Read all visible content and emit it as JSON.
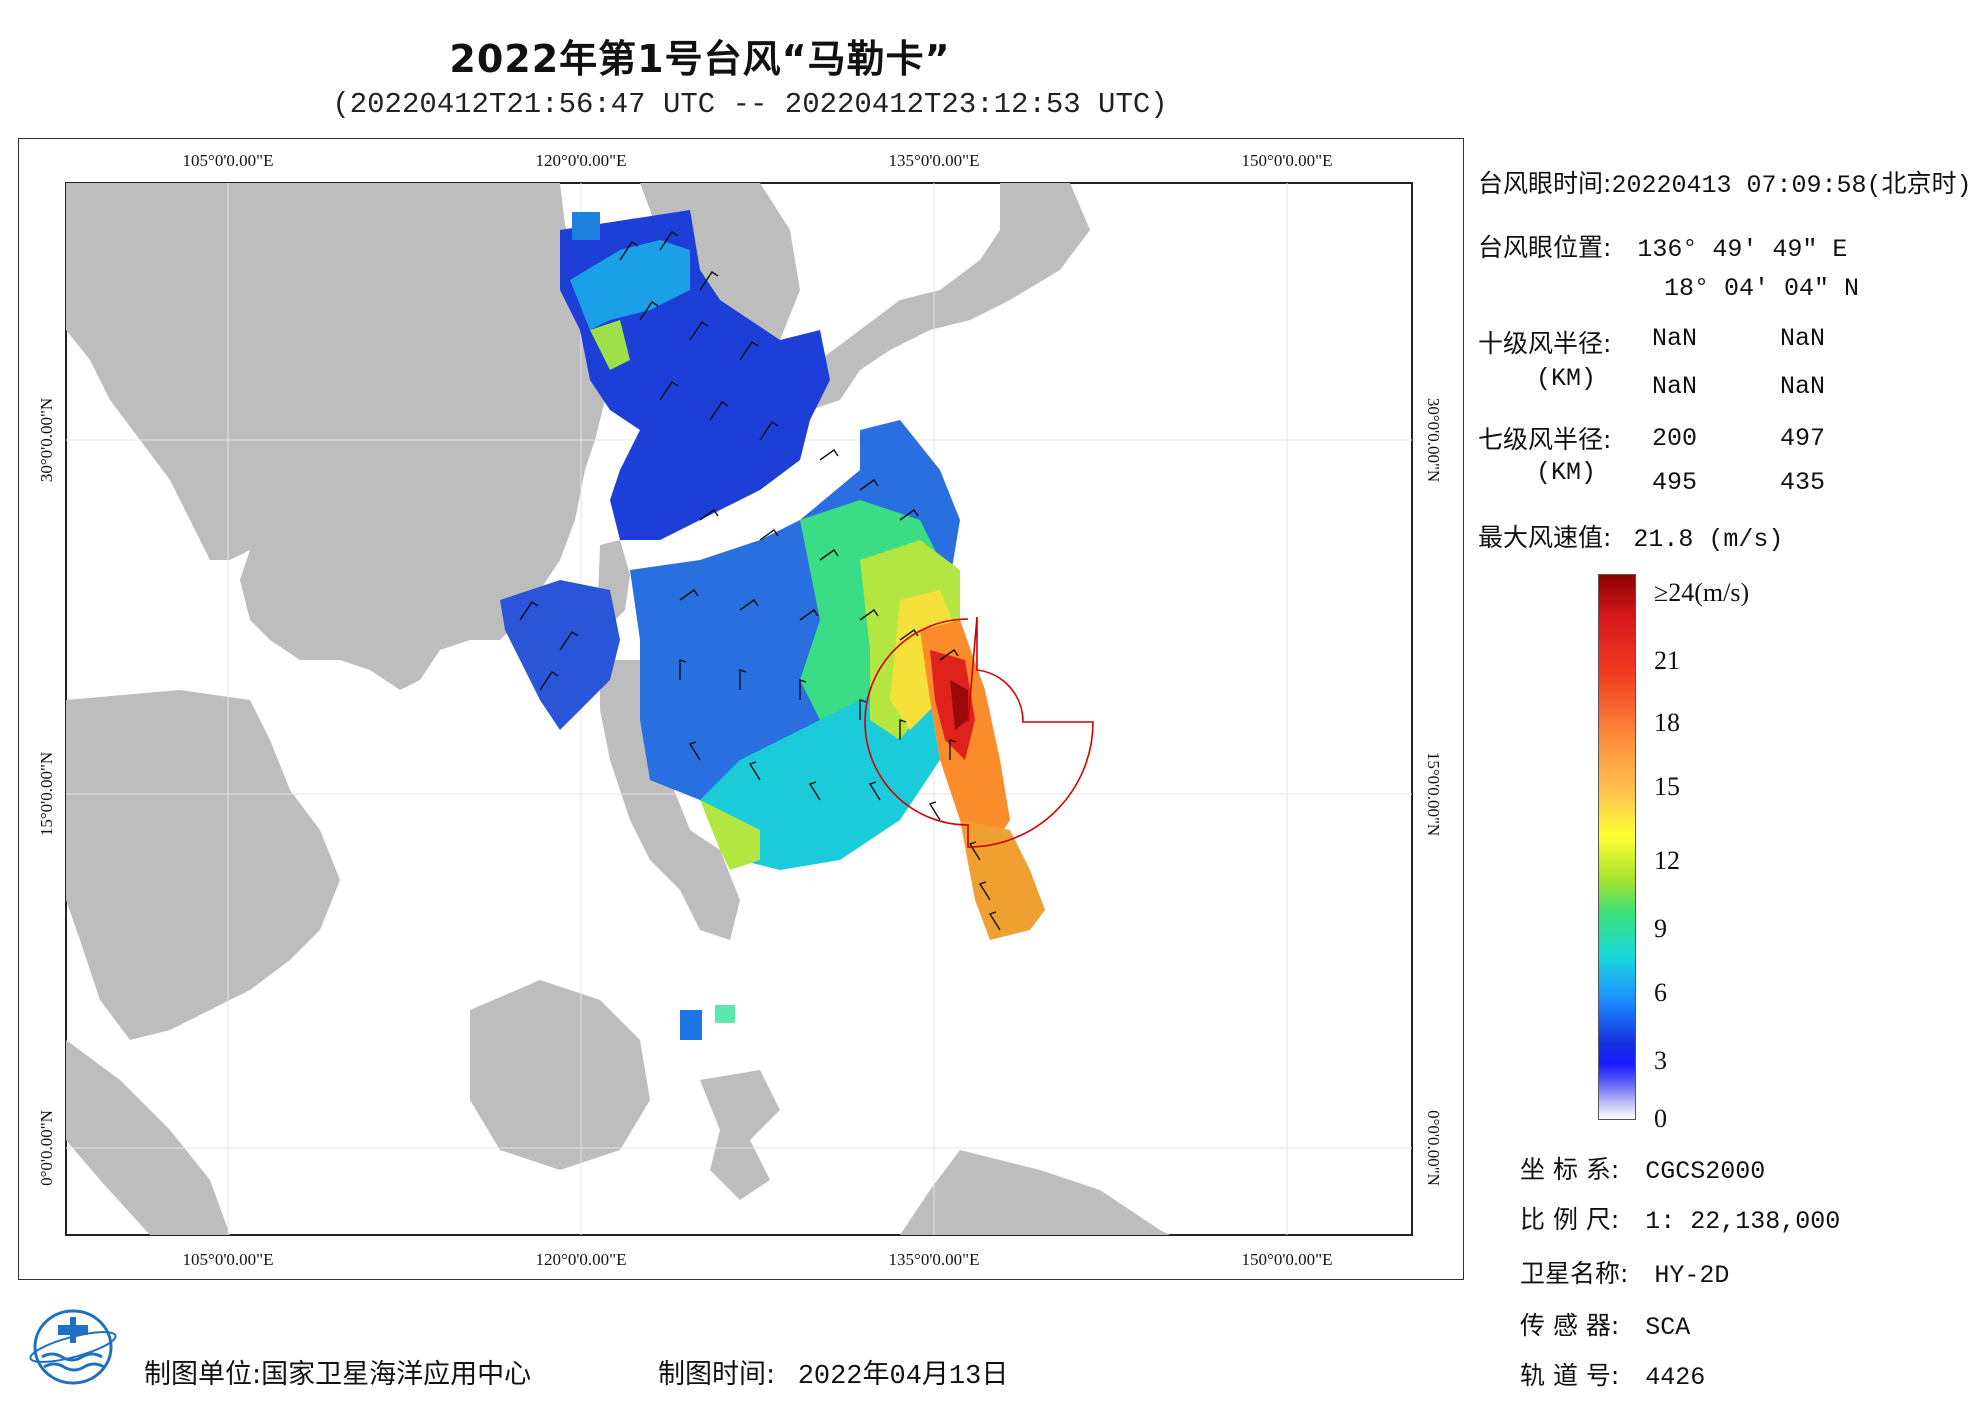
{
  "header": {
    "title": "2022年第1号台风“马勒卡”",
    "subtitle": "(20220412T21:56:47 UTC -- 20220412T23:12:53 UTC)"
  },
  "map": {
    "lon_labels": [
      "105°0'0.00\"E",
      "120°0'0.00\"E",
      "135°0'0.00\"E",
      "150°0'0.00\"E"
    ],
    "lat_labels": [
      "30°0'0.00\"N",
      "15°0'0.00\"N",
      "0°0'0.00\"N"
    ],
    "land_color": "#bdbdbd",
    "sea_color": "#ffffff",
    "wind_radius_color": "#d40000"
  },
  "info": {
    "eye_time_label": "台风眼时间:",
    "eye_time_value": "20220413 07:09:58(北京时)",
    "eye_pos_label": "台风眼位置:",
    "eye_lon": "136° 49′ 49″ E",
    "eye_lat": "18° 04′ 04″ N",
    "r10_label": "十级风半径:",
    "r10_unit": "(KM)",
    "r10_values": [
      "NaN",
      "NaN",
      "NaN",
      "NaN"
    ],
    "r7_label": "七级风半径:",
    "r7_unit": "(KM)",
    "r7_values": [
      "200",
      "497",
      "495",
      "435"
    ],
    "max_wind_label": "最大风速值:",
    "max_wind_value": "21.8  (m/s)"
  },
  "legend": {
    "ticks": [
      "≥24(m/s)",
      "21",
      "18",
      "15",
      "12",
      "9",
      "6",
      "3",
      "0"
    ]
  },
  "meta": {
    "crs_label": "坐 标 系:",
    "crs_value": "CGCS2000",
    "scale_label": "比 例 尺:",
    "scale_value": "1: 22,138,000",
    "sat_label": "卫星名称:",
    "sat_value": "HY-2D",
    "sensor_label": "传 感 器:",
    "sensor_value": "SCA",
    "orbit_label": "轨 道 号:",
    "orbit_value": "4426"
  },
  "footer": {
    "unit_label": "制图单位:",
    "unit_value": "国家卫星海洋应用中心",
    "time_label": "制图时间:",
    "time_value": "2022年04月13日"
  }
}
